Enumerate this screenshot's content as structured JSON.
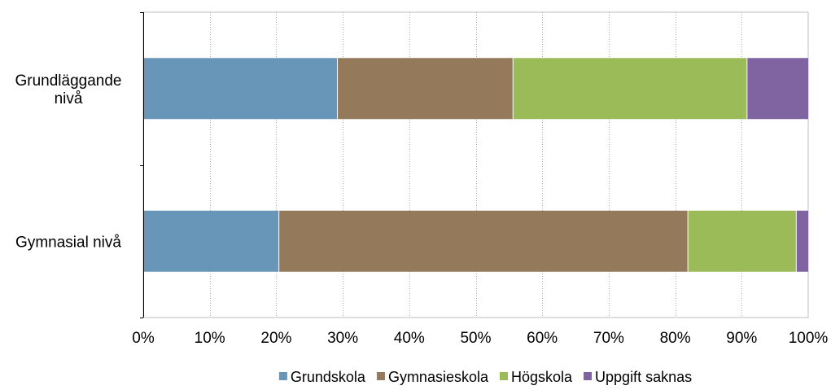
{
  "chart_data": {
    "type": "bar",
    "orientation": "horizontal",
    "stacked": true,
    "percent": true,
    "categories": [
      [
        "Grundläggande",
        "nivå"
      ],
      [
        "Gymnasial nivå"
      ]
    ],
    "series": [
      {
        "name": "Grundskola",
        "color": "#6896B9",
        "values": [
          29.2,
          20.4
        ]
      },
      {
        "name": "Gymnasieskola",
        "color": "#94795B",
        "values": [
          26.4,
          61.5
        ]
      },
      {
        "name": "Högskola",
        "color": "#9BBB59",
        "values": [
          35.2,
          16.3
        ]
      },
      {
        "name": "Uppgift saknas",
        "color": "#8064A2",
        "values": [
          9.2,
          1.8
        ]
      }
    ],
    "xlim": [
      0,
      100
    ],
    "xticks": [
      "0%",
      "10%",
      "20%",
      "30%",
      "40%",
      "50%",
      "60%",
      "70%",
      "80%",
      "90%",
      "100%"
    ],
    "grid": true,
    "legend": "bottom"
  }
}
